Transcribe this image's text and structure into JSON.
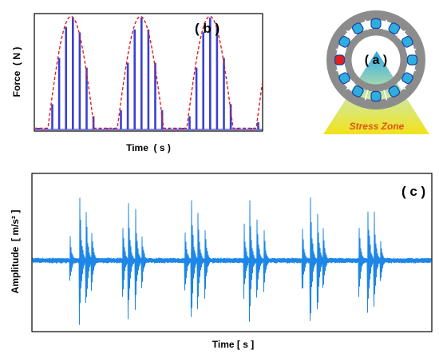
{
  "colors": {
    "force_bars": "#3a3fd6",
    "envelope": "#e02020",
    "vibration": "#1e86e6",
    "bearing_ring": "#8c8c8c",
    "ball_blue": "#2eaee0",
    "ball_red": "#e02020",
    "zone_top": "#2aa7e8",
    "zone_bottom": "#f2e21a",
    "zone_text": "#e0531e"
  },
  "panel_b": {
    "tag": "( b )",
    "xlabel": "Time  ( s )",
    "ylabel": "Force  ( N )"
  },
  "panel_a": {
    "tag": "( a )",
    "zone_label": "Stress Zone",
    "icon": "bearing-icon"
  },
  "panel_c": {
    "tag": "( c )",
    "xlabel": "Time [ s ]",
    "ylabel": "Amplitude  [ m/s² ]"
  }
}
